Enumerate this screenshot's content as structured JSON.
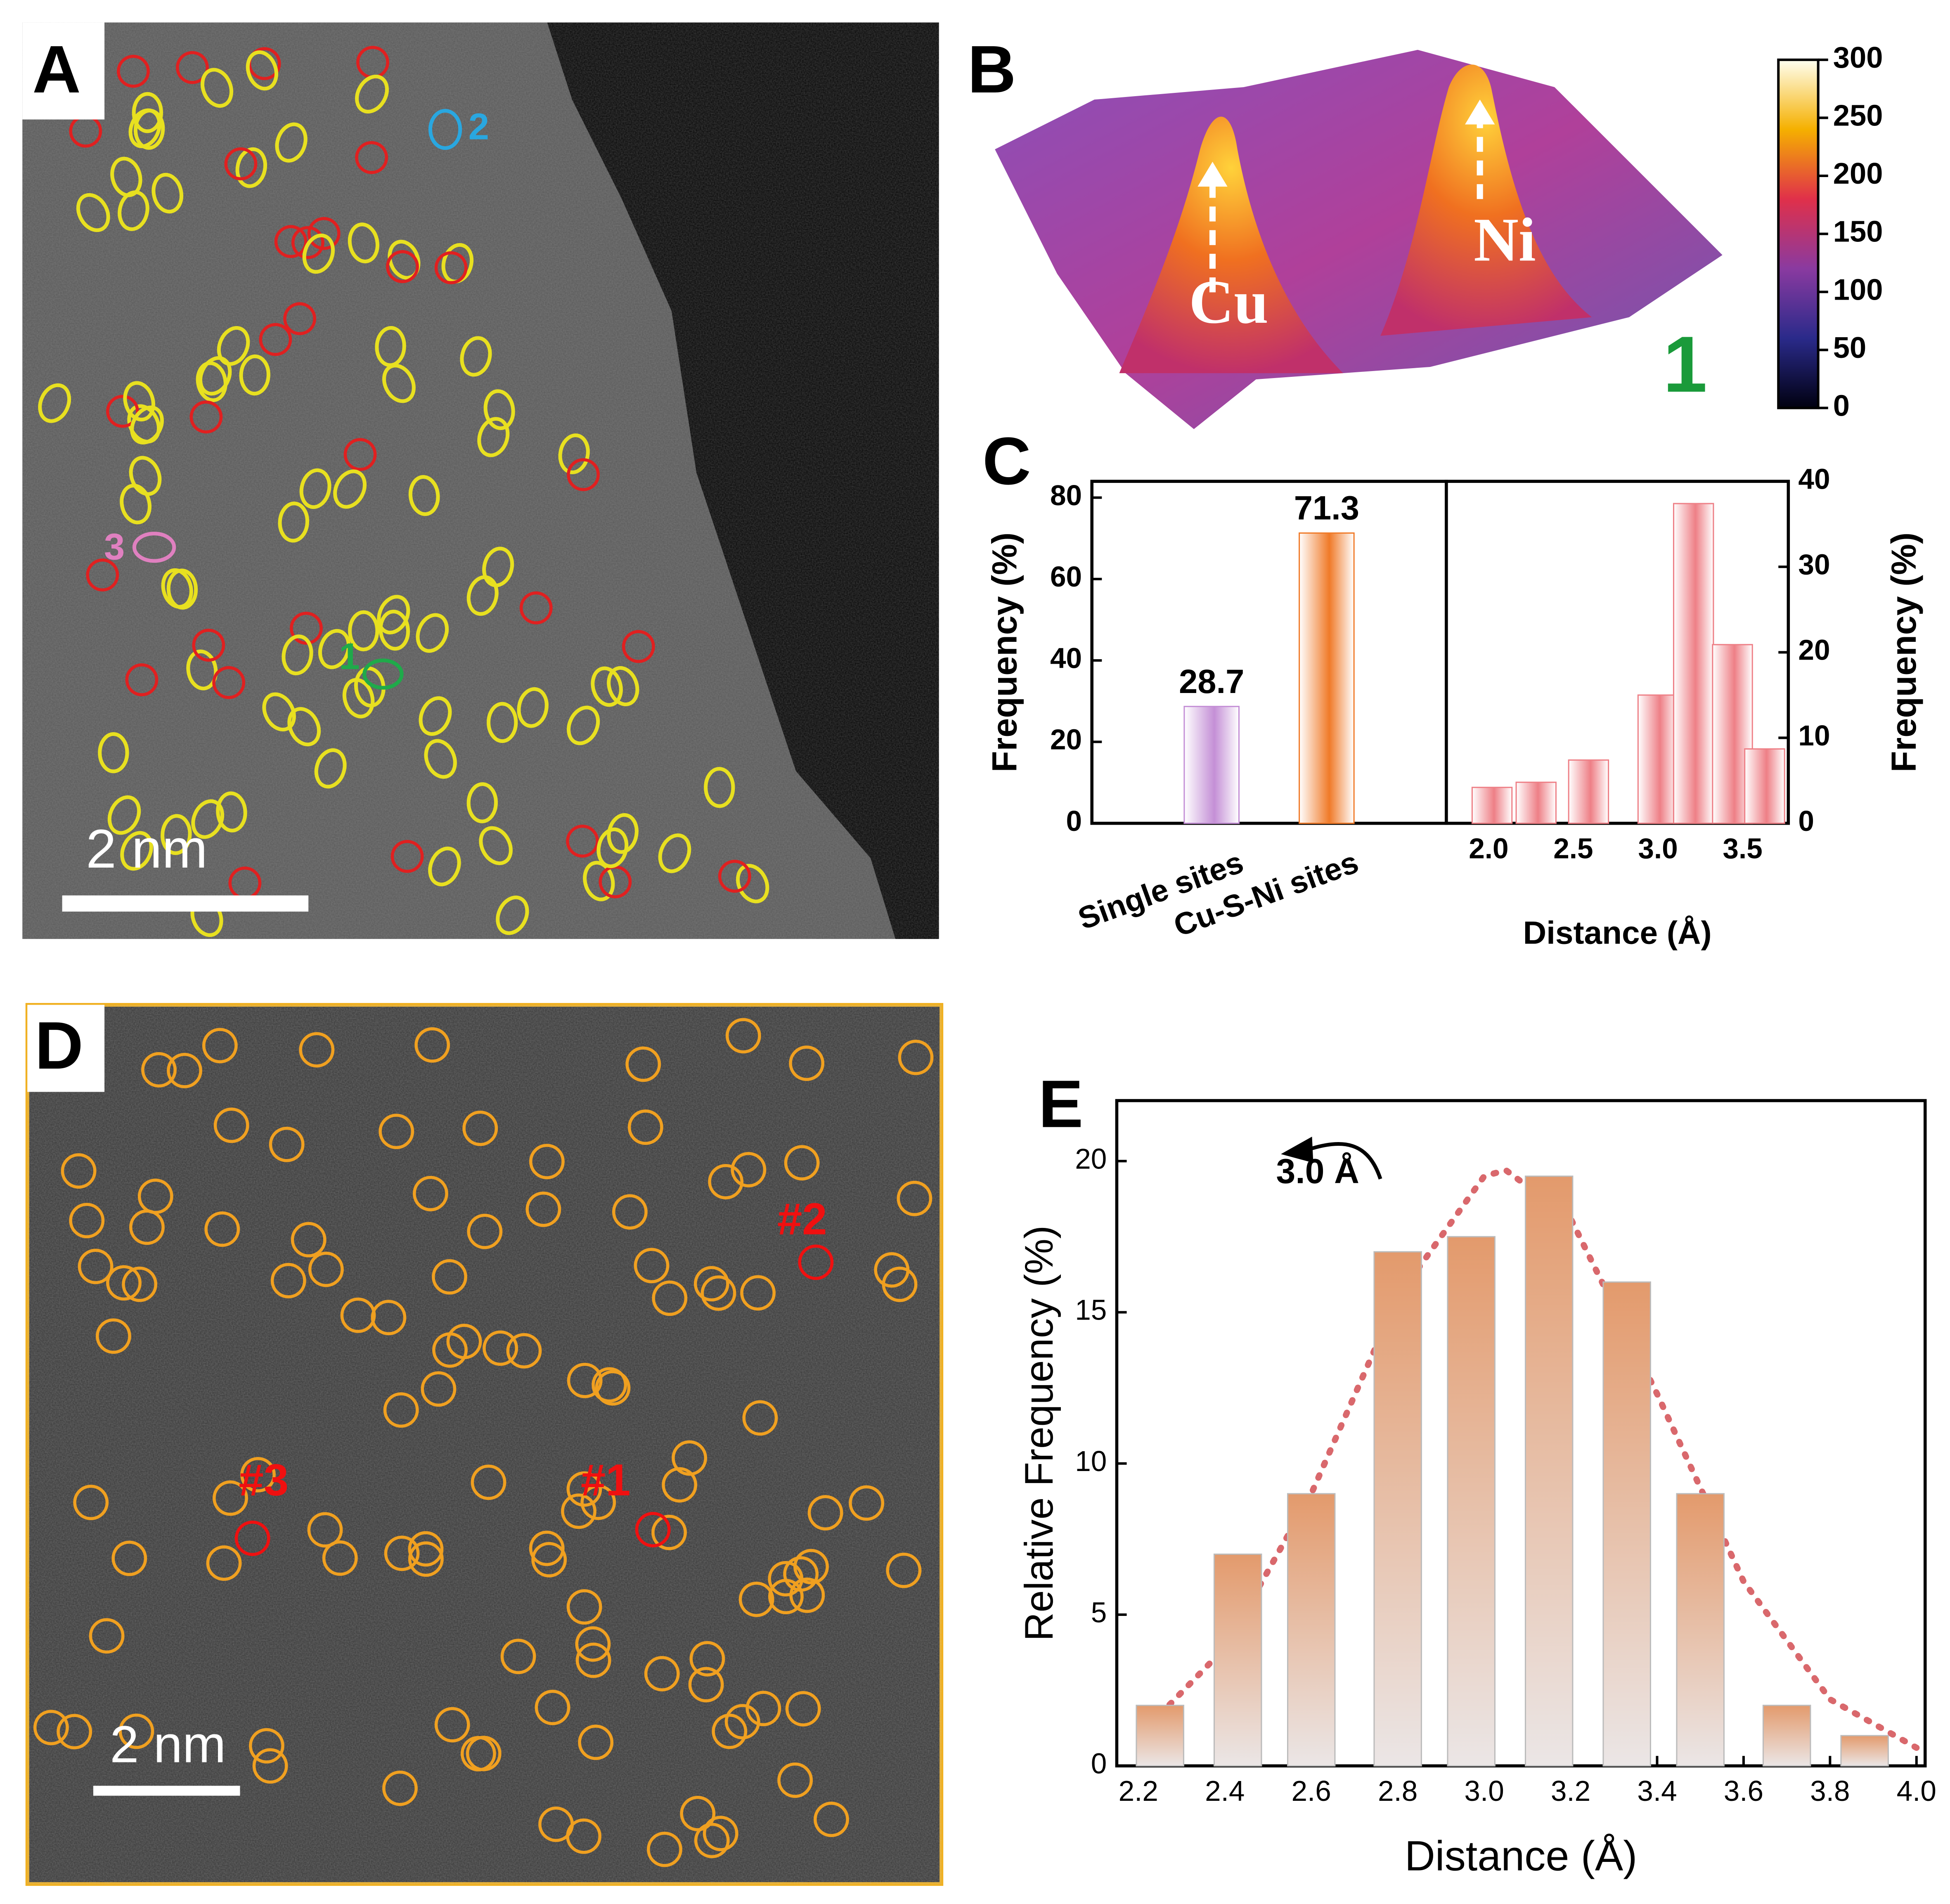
{
  "panels": {
    "A": {
      "letter": "A",
      "scale_bar": "2 nm",
      "site_labels": [
        "1",
        "2",
        "3"
      ]
    },
    "B": {
      "letter": "B",
      "peaks": [
        "Cu",
        "Ni"
      ],
      "site": "1",
      "colorbar": {
        "lim": [
          0,
          300
        ],
        "ticks": [
          0,
          50,
          100,
          150,
          200,
          250,
          300
        ]
      }
    },
    "C": {
      "letter": "C"
    },
    "D": {
      "letter": "D",
      "scale_bar": "2 nm",
      "site_labels": [
        "#1",
        "#2",
        "#3"
      ]
    },
    "E": {
      "letter": "E"
    }
  },
  "chart_data": [
    {
      "type": "bar",
      "categories": [
        "Single sites",
        "Cu-S-Ni sites"
      ],
      "values": [
        28.7,
        71.3
      ],
      "colors": [
        "#c48fd6",
        "#f07a28"
      ],
      "ylabel": "Frequency (%)",
      "ylim": [
        0,
        84
      ],
      "yticks": [
        0,
        20,
        40,
        60,
        80
      ],
      "y_axis_position": "left"
    },
    {
      "type": "bar",
      "x": [
        2.02,
        2.28,
        2.59,
        3.0,
        3.21,
        3.44,
        3.63
      ],
      "values": [
        4.2,
        4.8,
        7.4,
        15.0,
        37.4,
        20.9,
        8.7
      ],
      "color": "#ee7f86",
      "xlabel": "Distance (Å)",
      "ylabel": "Frequency (%)",
      "xlim": [
        1.75,
        3.77
      ],
      "xticks": [
        {
          "value": 2,
          "label": "2.0"
        },
        2.5,
        {
          "value": 3,
          "label": "3.0"
        },
        3.5
      ],
      "ylim": [
        0,
        40
      ],
      "yticks": [
        0,
        10,
        20,
        30,
        40
      ],
      "y_axis_position": "right"
    },
    {
      "type": "bar",
      "x": [
        2.25,
        2.43,
        2.6,
        2.8,
        2.97,
        3.15,
        3.33,
        3.5,
        3.7,
        3.88
      ],
      "values": [
        2,
        7,
        9,
        17,
        17.5,
        19.5,
        16,
        9,
        2,
        1
      ],
      "color": "#e39a6c",
      "xlabel": "Distance (Å)",
      "ylabel": "Relative Frequency (%)",
      "xlim": [
        2.15,
        4.02
      ],
      "xticks": [
        2.2,
        2.4,
        2.6,
        2.8,
        {
          "value": 3,
          "label": "3.0"
        },
        3.2,
        3.4,
        3.6,
        3.8,
        {
          "value": 4,
          "label": "4.0"
        }
      ],
      "ylim": [
        0,
        22
      ],
      "yticks": [
        0,
        5,
        10,
        15,
        20
      ],
      "y_axis_position": "left",
      "fit": {
        "x": [
          2.25,
          2.4,
          2.6,
          2.8,
          3.0,
          3.05,
          3.2,
          3.4,
          3.6,
          3.8,
          4.0
        ],
        "values": [
          1.7,
          3.9,
          9.0,
          15.5,
          19.5,
          19.7,
          18.1,
          12.3,
          6.1,
          2.2,
          0.6
        ],
        "color": "#d9686c"
      },
      "annotation": "3.0 Å"
    }
  ]
}
